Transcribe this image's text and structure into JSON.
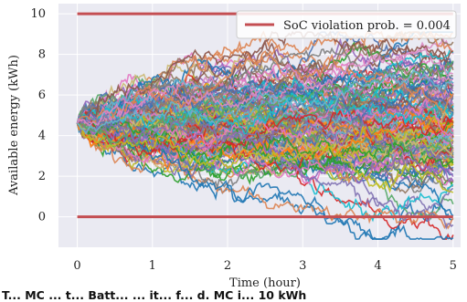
{
  "caption": "T... MC ... t... Batt... ... it... f... d. MC i... 10 kWh",
  "chart_data": {
    "type": "line",
    "title": "",
    "xlabel": "Time (hour)",
    "ylabel": "Available energy (kWh)",
    "xlim": [
      -0.25,
      5.1
    ],
    "ylim": [
      -1.5,
      10.5
    ],
    "xticks": [
      "0",
      "1",
      "2",
      "3",
      "4",
      "5"
    ],
    "yticks": [
      "0",
      "2",
      "4",
      "6",
      "8",
      "10"
    ],
    "grid": true,
    "legend": {
      "position": "top-right",
      "entries": [
        "SoC violation prob. = 0.004"
      ]
    },
    "bounds": {
      "lower": 0,
      "upper": 10,
      "color": "#c44e52"
    },
    "simulation": {
      "start": 4.6,
      "horizon_hours": 5,
      "num_paths": 160,
      "range_at_end": [
        -1.1,
        9.1
      ]
    },
    "palette": [
      "#1f77b4",
      "#ff7f0e",
      "#2ca02c",
      "#d62728",
      "#9467bd",
      "#8c564b",
      "#e377c2",
      "#7f7f7f",
      "#bcbd22",
      "#17becf",
      "#4c72b0",
      "#55a868",
      "#dd8452",
      "#8172b3",
      "#da8bc3",
      "#64b5cd",
      "#ccb974",
      "#937860"
    ]
  }
}
